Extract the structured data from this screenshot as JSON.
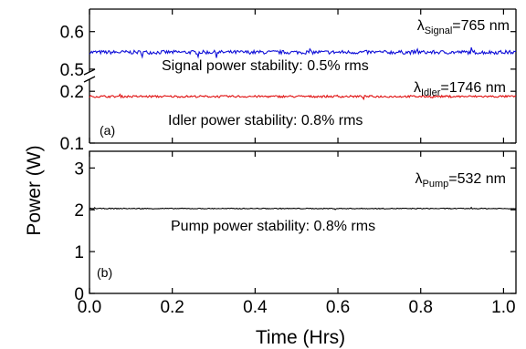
{
  "chart_data": [
    {
      "type": "line",
      "panel_label": "(a)",
      "broken_y_axis": true,
      "xlim": [
        0.0,
        1.03
      ],
      "upper_segment": {
        "ylim": [
          0.49,
          0.66
        ],
        "yticks": [
          0.5,
          0.6
        ],
        "ytick_labels": [
          "0.5",
          "0.6"
        ]
      },
      "lower_segment": {
        "ylim": [
          0.1,
          0.225
        ],
        "yticks": [
          0.1,
          0.2
        ],
        "ytick_labels": [
          "0.1",
          "0.2"
        ]
      },
      "series": [
        {
          "segment": "upper",
          "color": "#1010d8",
          "x": [
            0.0,
            1.03
          ],
          "values": [
            0.545,
            0.545
          ],
          "noise_amplitude": 0.005,
          "wavelength_label": {
            "symbol": "λ",
            "subscript": "Signal",
            "text": "=765 nm"
          },
          "stability_label": "Signal power stability: 0.5% rms"
        },
        {
          "segment": "lower",
          "color": "#e01010",
          "x": [
            0.0,
            1.03
          ],
          "values": [
            0.19,
            0.19
          ],
          "noise_amplitude": 0.002,
          "wavelength_label": {
            "symbol": "λ",
            "subscript": "Idler",
            "text": "=1746 nm"
          },
          "stability_label": "Idler power stability: 0.8% rms"
        }
      ]
    },
    {
      "type": "line",
      "panel_label": "(b)",
      "xlim": [
        0.0,
        1.03
      ],
      "ylim": [
        0,
        3.4
      ],
      "yticks": [
        0,
        1,
        2,
        3
      ],
      "ytick_labels": [
        "0",
        "1",
        "2",
        "3"
      ],
      "xticks": [
        0.0,
        0.2,
        0.4,
        0.6,
        0.8,
        1.0
      ],
      "xtick_labels": [
        "0.0",
        "0.2",
        "0.4",
        "0.6",
        "0.8",
        "1.0"
      ],
      "xlabel": "Time (Hrs)",
      "series": [
        {
          "color": "#000000",
          "x": [
            0.0,
            1.03
          ],
          "values": [
            2.03,
            2.03
          ],
          "noise_amplitude": 0.01,
          "wavelength_label": {
            "symbol": "λ",
            "subscript": "Pump",
            "text": "=532 nm"
          },
          "stability_label": "Pump power stability: 0.8% rms"
        }
      ]
    }
  ],
  "ylabel": "Power (W)"
}
